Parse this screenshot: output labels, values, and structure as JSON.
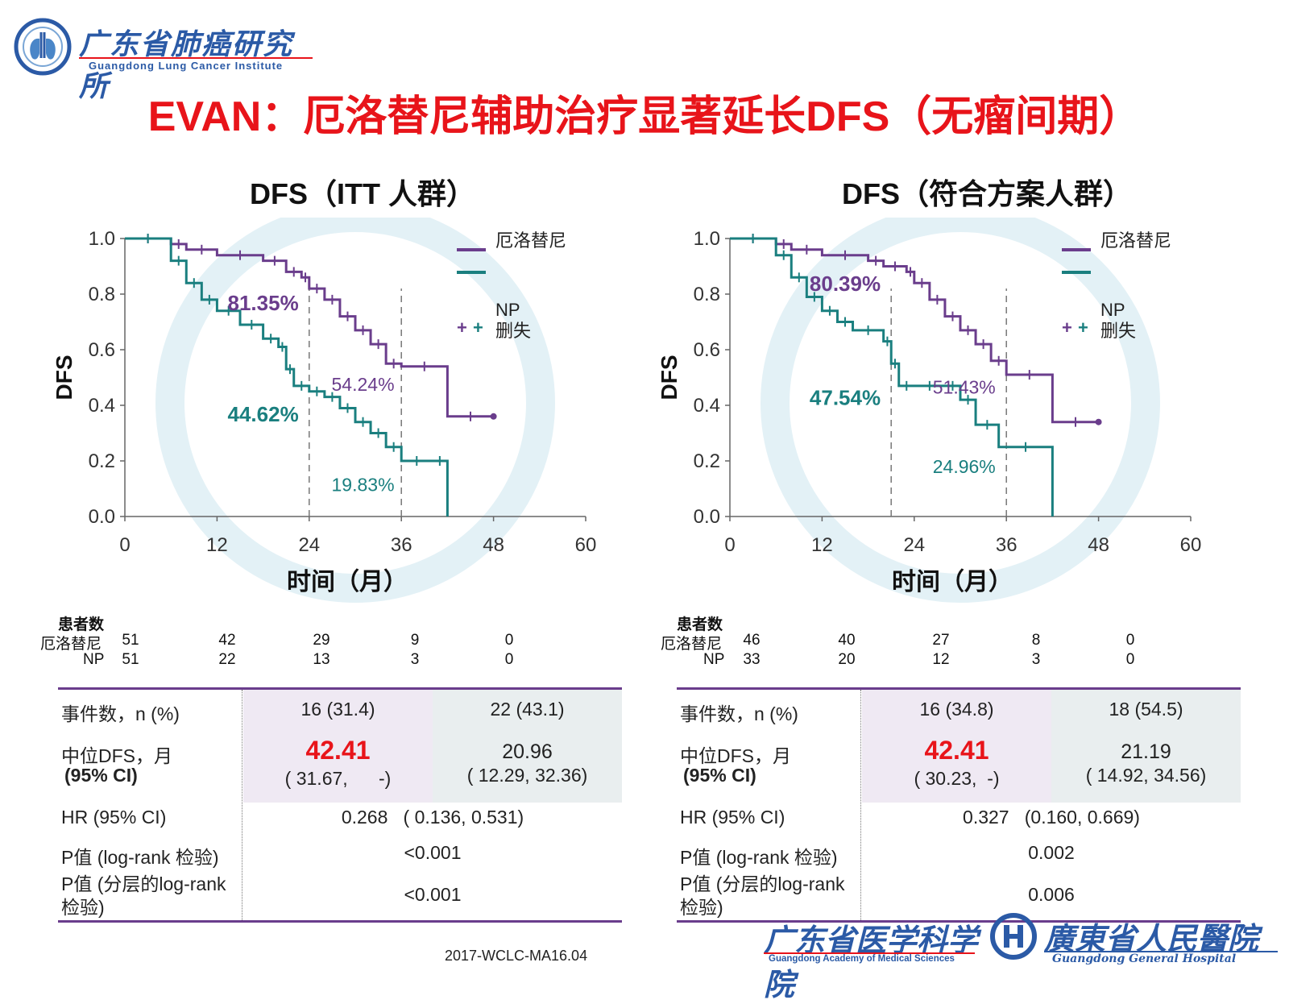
{
  "logo": {
    "institute_cn": "广东省肺癌研究所",
    "institute_en": "Guangdong Lung Cancer Institute",
    "academy_cn": "广东省医学科学院",
    "academy_en": "Guangdong Academy of Medical Sciences",
    "hospital_cn": "廣東省人民醫院",
    "hospital_en": "Guangdong General Hospital"
  },
  "title": "EVAN：厄洛替尼辅助治疗显著延长DFS（无瘤间期）",
  "footer_ref": "2017-WCLC-MA16.04",
  "colors": {
    "erlotinib": "#6a3d8c",
    "np": "#1a7f7f",
    "title": "#e8141a"
  },
  "chart_data": [
    {
      "type": "line",
      "title": "DFS（ITT 人群）",
      "xlabel": "时间（月）",
      "ylabel": "DFS",
      "xlim": [
        0,
        60
      ],
      "ylim": [
        0,
        1.0
      ],
      "xticks": [
        "0",
        "12",
        "24",
        "36",
        "48",
        "60"
      ],
      "yticks": [
        "0.0",
        "0.2",
        "0.4",
        "0.6",
        "0.8",
        "1.0"
      ],
      "legend": {
        "placement": "top-right",
        "entries": [
          "厄洛替尼",
          "NP",
          "删失"
        ]
      },
      "series": [
        {
          "name": "厄洛替尼",
          "color": "#6a3d8c",
          "x": [
            0,
            6,
            8,
            12,
            18,
            21,
            23,
            24,
            26,
            28,
            30,
            32,
            34,
            36,
            42,
            48
          ],
          "y": [
            1.0,
            0.98,
            0.96,
            0.94,
            0.92,
            0.88,
            0.86,
            0.82,
            0.78,
            0.72,
            0.67,
            0.62,
            0.55,
            0.54,
            0.36,
            0.36
          ]
        },
        {
          "name": "NP",
          "color": "#1a7f7f",
          "x": [
            0,
            6,
            8,
            10,
            12,
            15,
            18,
            20,
            21,
            22,
            24,
            26,
            28,
            30,
            32,
            34,
            36,
            40,
            42
          ],
          "y": [
            1.0,
            0.92,
            0.84,
            0.78,
            0.74,
            0.69,
            0.64,
            0.61,
            0.53,
            0.47,
            0.45,
            0.43,
            0.39,
            0.34,
            0.3,
            0.25,
            0.2,
            0.2,
            0.0
          ]
        }
      ],
      "reference_x": [
        24,
        36
      ],
      "annotations": [
        {
          "text": "81.35%",
          "x": 18,
          "y": 0.765,
          "color": "#6a3d8c",
          "bold": true
        },
        {
          "text": "44.62%",
          "x": 18,
          "y": 0.365,
          "color": "#1a7f7f",
          "bold": true
        },
        {
          "text": "54.24%",
          "x": 31,
          "y": 0.475,
          "color": "#6a3d8c",
          "bold": false
        },
        {
          "text": "19.83%",
          "x": 31,
          "y": 0.115,
          "color": "#1a7f7f",
          "bold": false
        }
      ],
      "risk_table": {
        "header": "患者数",
        "rows": [
          {
            "label": "厄洛替尼",
            "values": [
              "51",
              "42",
              "29",
              "9",
              "0"
            ]
          },
          {
            "label": "NP",
            "values": [
              "51",
              "22",
              "13",
              "3",
              "0"
            ]
          }
        ]
      },
      "stats": {
        "events_label": "事件数，n (%)",
        "events": [
          "16 (31.4)",
          "22 (43.1)"
        ],
        "median_label": "中位DFS，月",
        "median_ci_label": "(95% CI)",
        "median": [
          "42.41",
          "20.96"
        ],
        "median_ci": [
          "( 31.67,      -)",
          "( 12.29, 32.36)"
        ],
        "hr_label": "HR (95% CI)",
        "hr": "0.268   ( 0.136, 0.531)",
        "p_label": "P值 (log-rank 检验)",
        "p": "<0.001",
        "p_strat_label": "P值 (分层的log-rank 检验)",
        "p_strat": "<0.001"
      }
    },
    {
      "type": "line",
      "title": "DFS（符合方案人群）",
      "xlabel": "时间（月）",
      "ylabel": "DFS",
      "xlim": [
        0,
        60
      ],
      "ylim": [
        0,
        1.0
      ],
      "xticks": [
        "0",
        "12",
        "24",
        "36",
        "48",
        "60"
      ],
      "yticks": [
        "0.0",
        "0.2",
        "0.4",
        "0.6",
        "0.8",
        "1.0"
      ],
      "legend": {
        "placement": "top-right",
        "entries": [
          "厄洛替尼",
          "NP",
          "删失"
        ]
      },
      "series": [
        {
          "name": "厄洛替尼",
          "color": "#6a3d8c",
          "x": [
            0,
            6,
            8,
            12,
            18,
            20,
            23,
            24,
            26,
            28,
            30,
            32,
            34,
            36,
            42,
            48
          ],
          "y": [
            1.0,
            0.98,
            0.96,
            0.94,
            0.92,
            0.9,
            0.88,
            0.84,
            0.78,
            0.72,
            0.67,
            0.62,
            0.56,
            0.51,
            0.34,
            0.34
          ]
        },
        {
          "name": "NP",
          "color": "#1a7f7f",
          "x": [
            0,
            6,
            8,
            10,
            12,
            14,
            16,
            20,
            21,
            22,
            24,
            28,
            30,
            32,
            35,
            42
          ],
          "y": [
            1.0,
            0.94,
            0.86,
            0.79,
            0.74,
            0.7,
            0.67,
            0.63,
            0.55,
            0.47,
            0.47,
            0.47,
            0.42,
            0.33,
            0.25,
            0.0
          ]
        }
      ],
      "reference_x": [
        21,
        36
      ],
      "annotations": [
        {
          "text": "80.39%",
          "x": 15,
          "y": 0.835,
          "color": "#6a3d8c",
          "bold": true
        },
        {
          "text": "47.54%",
          "x": 15,
          "y": 0.425,
          "color": "#1a7f7f",
          "bold": true
        },
        {
          "text": "51.43%",
          "x": 30.5,
          "y": 0.465,
          "color": "#6a3d8c",
          "bold": false
        },
        {
          "text": "24.96%",
          "x": 30.5,
          "y": 0.18,
          "color": "#1a7f7f",
          "bold": false
        }
      ],
      "risk_table": {
        "header": "患者数",
        "rows": [
          {
            "label": "厄洛替尼",
            "values": [
              "46",
              "40",
              "27",
              "8",
              "0"
            ]
          },
          {
            "label": "NP",
            "values": [
              "33",
              "20",
              "12",
              "3",
              "0"
            ]
          }
        ]
      },
      "stats": {
        "events_label": "事件数，n (%)",
        "events": [
          "16 (34.8)",
          "18 (54.5)"
        ],
        "median_label": "中位DFS，月",
        "median_ci_label": "(95% CI)",
        "median": [
          "42.41",
          "21.19"
        ],
        "median_ci": [
          "( 30.23,  -)",
          "( 14.92, 34.56)"
        ],
        "hr_label": "HR (95% CI)",
        "hr": "0.327   (0.160, 0.669)",
        "p_label": "P值 (log-rank 检验)",
        "p": "0.002",
        "p_strat_label": "P值 (分层的log-rank 检验)",
        "p_strat": "0.006"
      }
    }
  ]
}
